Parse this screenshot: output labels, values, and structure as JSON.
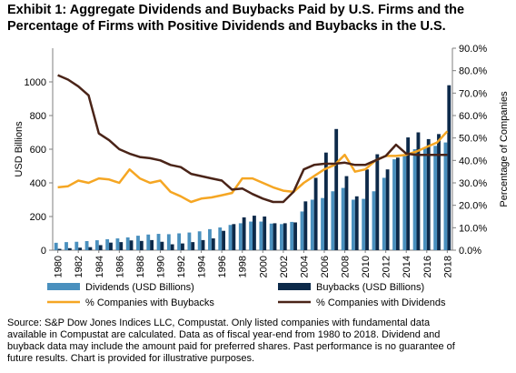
{
  "title_lines": [
    "Exhibit 1: Aggregate Dividends and Buybacks Paid by U.S. Firms and the",
    "Percentage of Firms with Positive Dividends and Buybacks in the U.S."
  ],
  "source_lines": [
    "Source: S&P Dow Jones Indices LLC, Compustat.  Only listed companies with fundamental data",
    "available in Compustat are calculated.  Data as of fiscal year-end from 1980 to 2018.  Dividend and",
    "buyback data may include the amount paid for preferred shares.  Past performance is no guarantee of",
    "future results.  Chart is provided for illustrative purposes."
  ],
  "colors": {
    "dividends": "#4A90BE",
    "buybacks": "#0D2A4A",
    "pct_buybacks": "#F5A623",
    "pct_dividends": "#4A2418",
    "axis": "#7f7f7f"
  },
  "chart_data": {
    "type": "bar+line",
    "x": [
      1980,
      1981,
      1982,
      1983,
      1984,
      1985,
      1986,
      1987,
      1988,
      1989,
      1990,
      1991,
      1992,
      1993,
      1994,
      1995,
      1996,
      1997,
      1998,
      1999,
      2000,
      2001,
      2002,
      2003,
      2004,
      2005,
      2006,
      2007,
      2008,
      2009,
      2010,
      2011,
      2012,
      2013,
      2014,
      2015,
      2016,
      2017,
      2018
    ],
    "x_tick_labels": [
      "1980",
      "1982",
      "1984",
      "1986",
      "1988",
      "1990",
      "1992",
      "1994",
      "1996",
      "1998",
      "2000",
      "2002",
      "2004",
      "2006",
      "2008",
      "2010",
      "2012",
      "2014",
      "2016",
      "2018"
    ],
    "ylabel": "USD Billions",
    "ylim": [
      0,
      1200
    ],
    "yticks": [
      "0",
      "200",
      "400",
      "600",
      "800",
      "1000"
    ],
    "y2label": "Percentage of Companies",
    "y2lim": [
      0,
      90
    ],
    "y2ticks": [
      "0.0%",
      "10.0%",
      "20.0%",
      "30.0%",
      "40.0%",
      "50.0%",
      "60.0%",
      "70.0%",
      "80.0%",
      "90.0%"
    ],
    "legend_position": "bottom",
    "series": [
      {
        "name": "Dividends (USD Billions)",
        "kind": "bar",
        "values": [
          44,
          48,
          50,
          54,
          59,
          65,
          70,
          76,
          86,
          93,
          97,
          95,
          100,
          105,
          112,
          125,
          135,
          150,
          160,
          170,
          170,
          158,
          155,
          168,
          230,
          300,
          310,
          350,
          370,
          300,
          305,
          350,
          430,
          540,
          560,
          600,
          610,
          620,
          640
        ]
      },
      {
        "name": "Buybacks (USD Billions)",
        "kind": "bar",
        "values": [
          8,
          12,
          15,
          18,
          30,
          45,
          48,
          58,
          55,
          60,
          50,
          35,
          40,
          48,
          60,
          70,
          115,
          155,
          195,
          205,
          200,
          160,
          160,
          165,
          290,
          430,
          580,
          720,
          440,
          320,
          480,
          570,
          480,
          550,
          670,
          700,
          660,
          690,
          980
        ]
      },
      {
        "name": "% Companies with Buybacks",
        "kind": "line",
        "axis": "y2",
        "values": [
          28,
          28.5,
          31,
          30,
          32,
          31.5,
          30,
          36,
          32,
          30,
          31,
          26,
          24,
          21.5,
          23,
          23.5,
          24.5,
          25.5,
          32,
          32,
          30,
          28,
          26.5,
          26,
          30,
          33,
          36,
          38,
          42.5,
          35,
          36,
          40,
          42,
          42,
          42.5,
          44,
          46,
          48,
          53
        ]
      },
      {
        "name": "% Companies with Dividends",
        "kind": "line",
        "axis": "y2",
        "values": [
          78,
          76,
          73,
          69,
          52,
          49,
          45,
          43,
          41.5,
          41,
          40,
          38,
          37,
          34,
          33,
          32,
          31,
          27,
          27.5,
          25,
          23,
          21.5,
          21.5,
          26,
          36,
          38,
          38.5,
          38.5,
          39,
          38,
          38,
          40,
          42,
          47,
          43,
          42.5,
          42.5,
          42.5,
          42.5
        ]
      }
    ]
  }
}
